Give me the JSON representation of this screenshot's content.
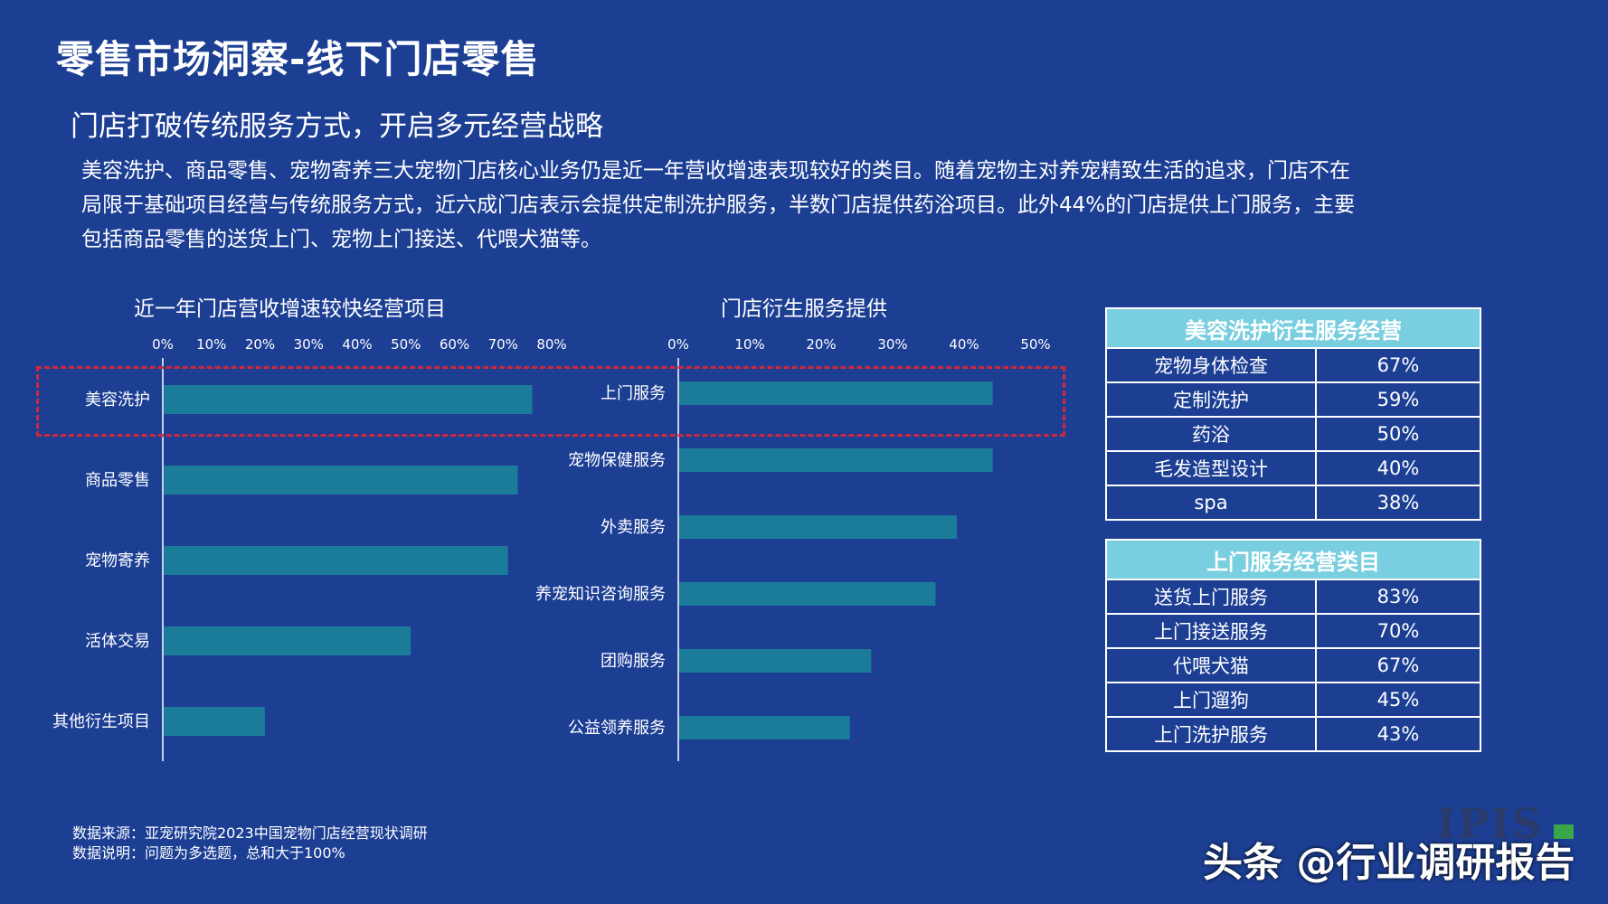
{
  "title": "零售市场洞察-线下门店零售",
  "subtitle": "门店打破传统服务方式，开启多元经营战略",
  "intro": [
    "美容洗护、商品零售、宠物寄养三大宠物门店核心业务仍是近一年营收增速表现较好的类目。随着宠物主对养宠精致生活的追求，门店不在",
    "局限于基础项目经营与传统服务方式，近六成门店表示会提供定制洗护服务，半数门店提供药浴项目。此外44%的门店提供上门服务，主要",
    "包括商品零售的送货上门、宠物上门接送、代喂犬猫等。"
  ],
  "colors": {
    "background": "#1c3f94",
    "bar": "#1a7c99",
    "table_header": "#79cedf",
    "highlight": "#d0273a"
  },
  "chart_data": [
    {
      "type": "bar",
      "orientation": "horizontal",
      "title": "近一年门店营收增速较快经营项目",
      "categories": [
        "美容洗护",
        "商品零售",
        "宠物寄养",
        "活体交易",
        "其他衍生项目"
      ],
      "values": [
        76,
        73,
        71,
        51,
        21
      ],
      "xlim": [
        0,
        80
      ],
      "xticks": [
        "0%",
        "10%",
        "20%",
        "30%",
        "40%",
        "50%",
        "60%",
        "70%",
        "80%"
      ],
      "grid": false
    },
    {
      "type": "bar",
      "orientation": "horizontal",
      "title": "门店衍生服务提供",
      "categories": [
        "上门服务",
        "宠物保健服务",
        "外卖服务",
        "养宠知识咨询服务",
        "团购服务",
        "公益领养服务"
      ],
      "values": [
        44,
        44,
        39,
        36,
        27,
        24
      ],
      "xlim": [
        0,
        50
      ],
      "xticks": [
        "0%",
        "10%",
        "20%",
        "30%",
        "40%",
        "50%"
      ],
      "grid": false
    }
  ],
  "tables": [
    {
      "header": "美容洗护衍生服务经营",
      "rows": [
        {
          "name": "宠物身体检查",
          "value": "67%"
        },
        {
          "name": "定制洗护",
          "value": "59%"
        },
        {
          "name": "药浴",
          "value": "50%"
        },
        {
          "name": "毛发造型设计",
          "value": "40%"
        },
        {
          "name": "spa",
          "value": "38%"
        }
      ]
    },
    {
      "header": "上门服务经营类目",
      "rows": [
        {
          "name": "送货上门服务",
          "value": "83%"
        },
        {
          "name": "上门接送服务",
          "value": "70%"
        },
        {
          "name": "代喂犬猫",
          "value": "67%"
        },
        {
          "name": "上门遛狗",
          "value": "45%"
        },
        {
          "name": "上门洗护服务",
          "value": "43%"
        }
      ]
    }
  ],
  "footnotes": {
    "source": "数据来源：亚宠研究院2023中国宠物门店经营现状调研",
    "note": "数据说明：问题为多选题，总和大于100%"
  },
  "watermark": "头条 @行业调研报告",
  "logo": "IPIS"
}
